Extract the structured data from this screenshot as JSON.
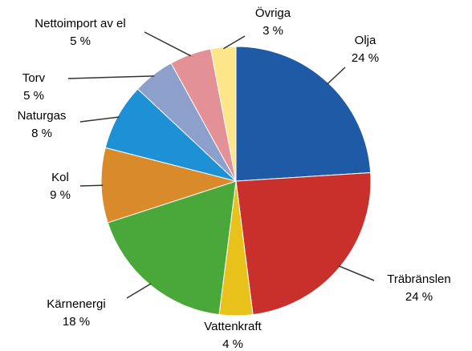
{
  "chart_data": {
    "type": "pie",
    "categories": [
      "Olja",
      "Träbränslen",
      "Vattenkraft",
      "Kärnenergi",
      "Kol",
      "Naturgas",
      "Torv",
      "Nettoimport av el",
      "Övriga"
    ],
    "values": [
      24,
      24,
      4,
      18,
      9,
      8,
      5,
      5,
      3
    ],
    "value_labels": [
      "24 %",
      "24 %",
      "4 %",
      "18 %",
      "9 %",
      "8 %",
      "5 %",
      "5 %",
      "3 %"
    ],
    "colors": [
      "#1f5aa6",
      "#c9302c",
      "#e8c21a",
      "#4aa83a",
      "#d98a2b",
      "#1e90d6",
      "#8da0cc",
      "#e39096",
      "#fde68a"
    ]
  }
}
